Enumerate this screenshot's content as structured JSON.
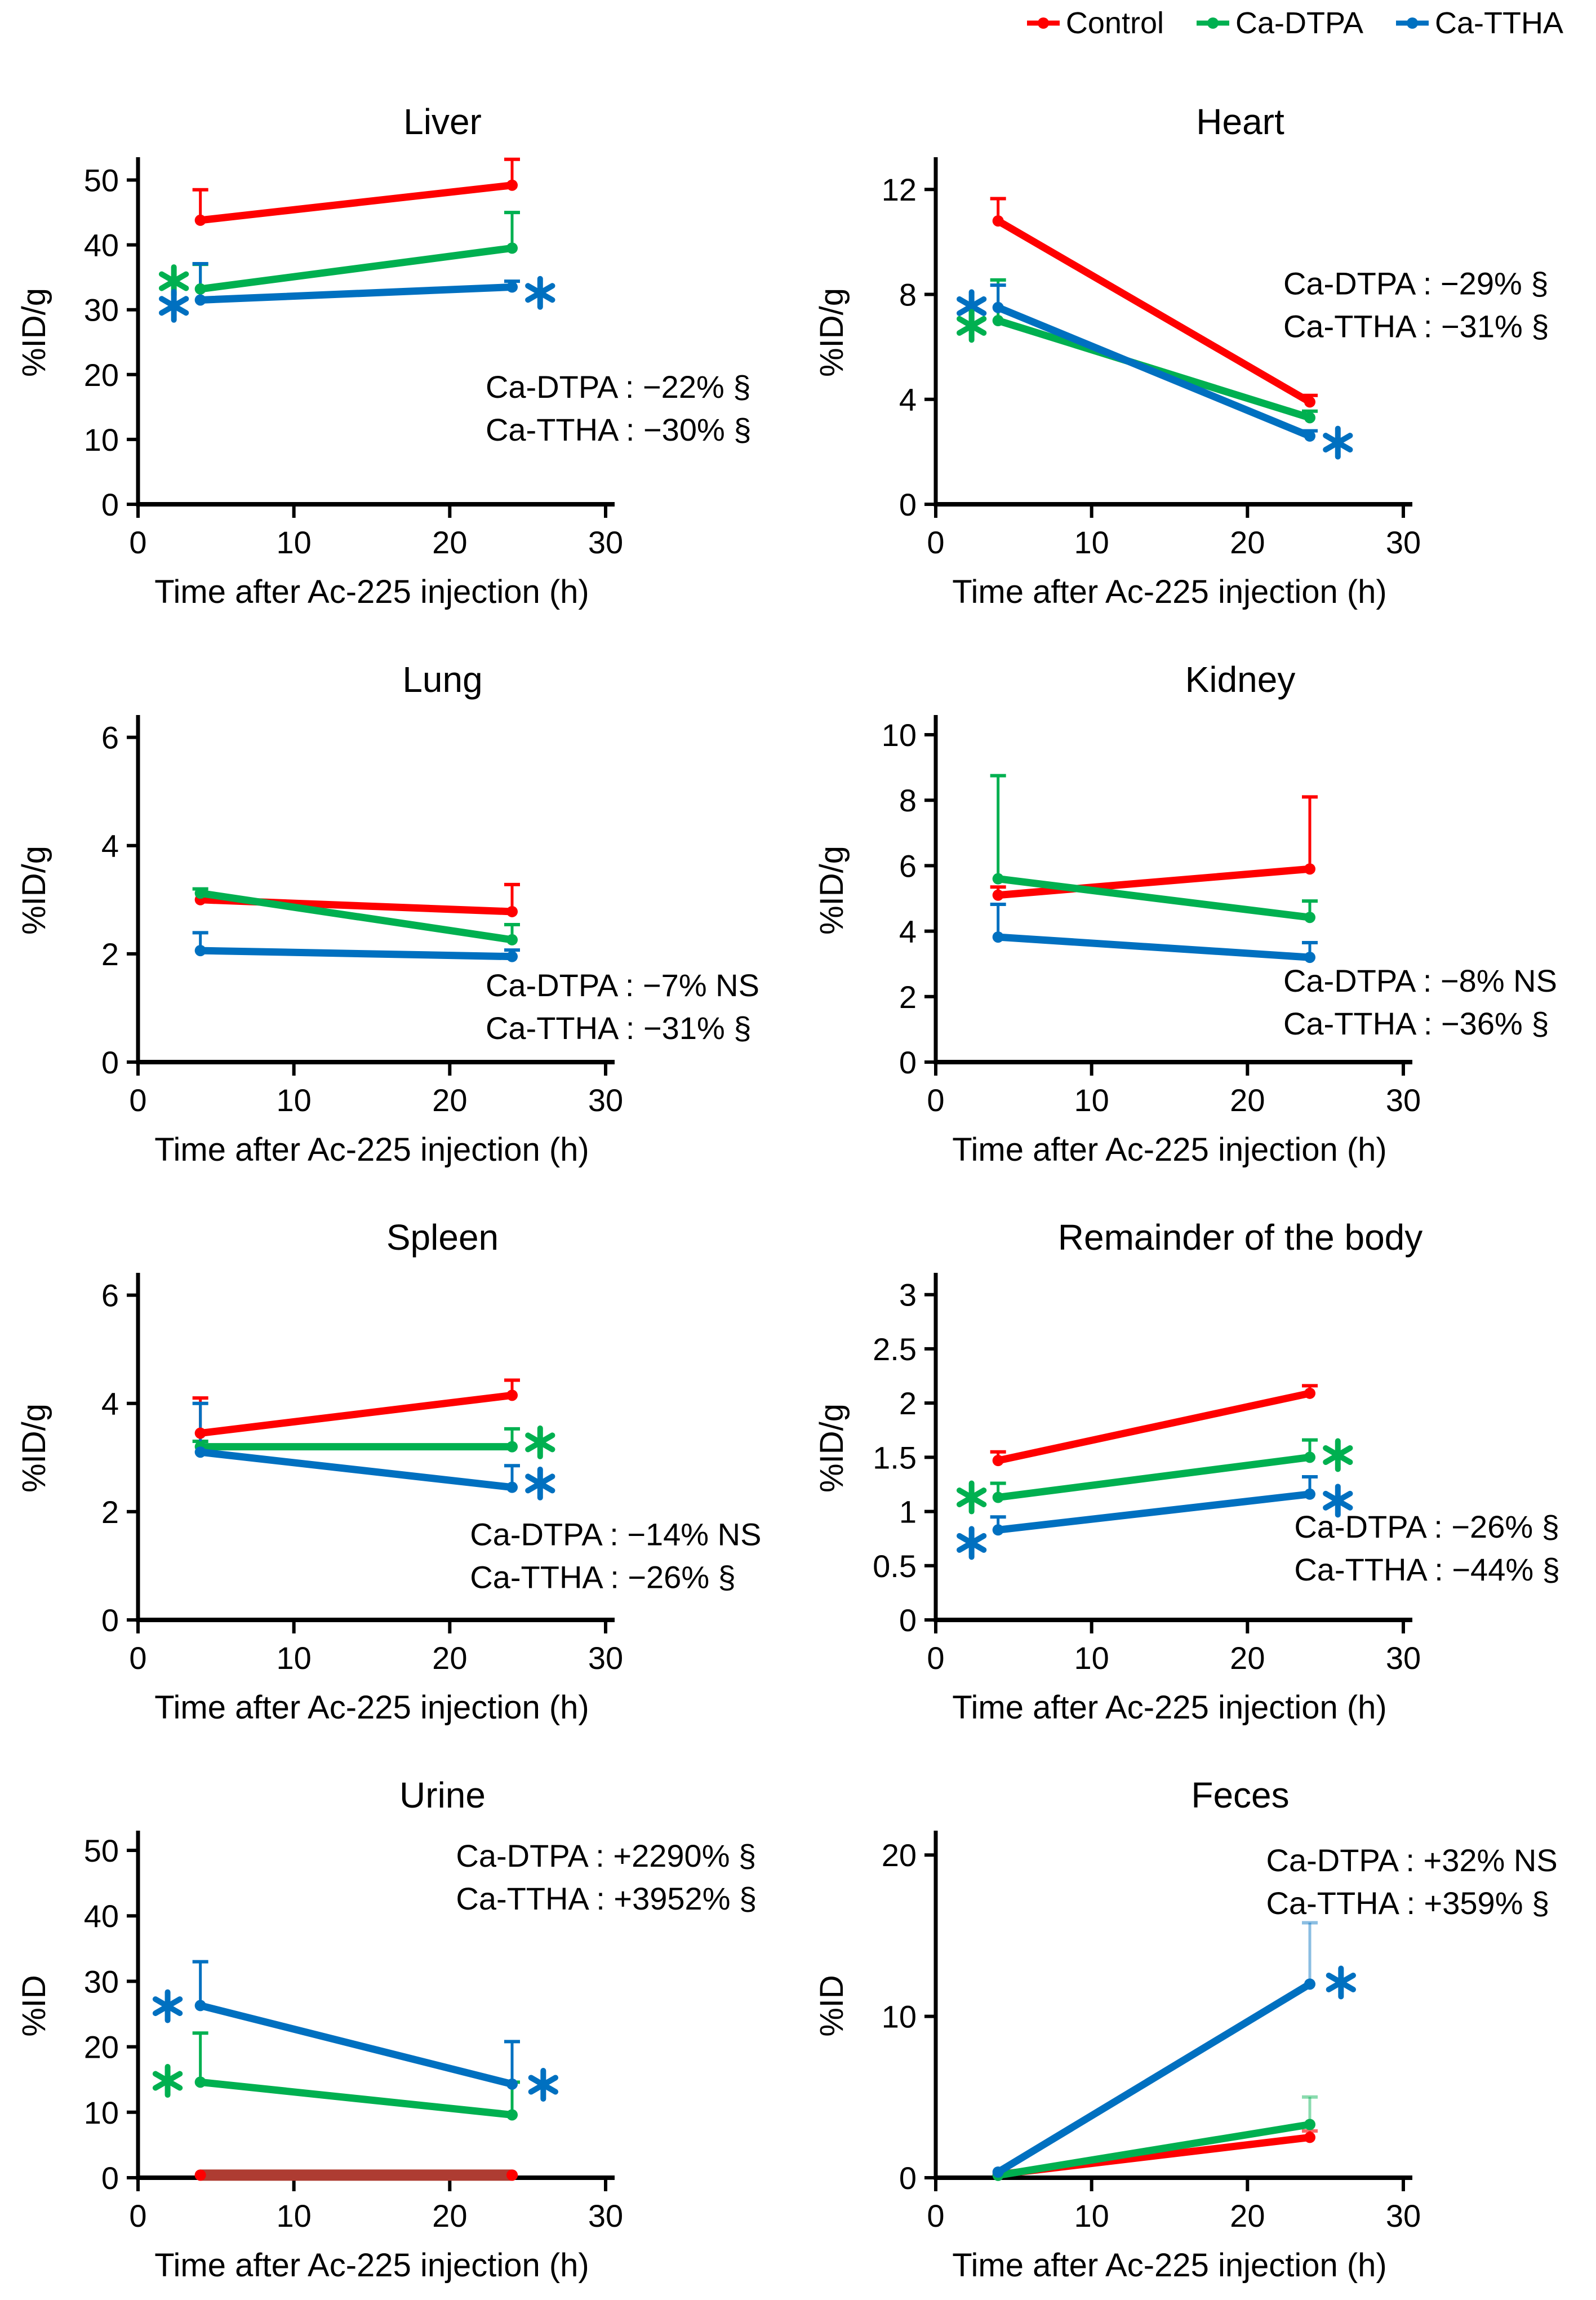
{
  "figure": {
    "x_axis_title": "Time after Ac-225 injection (h)",
    "colors": {
      "control": "#FF0000",
      "ca_dtpa": "#00B050",
      "ca_ttha": "#0070C0"
    },
    "legend": [
      {
        "label": "Control",
        "color": "#FF0000"
      },
      {
        "label": "Ca-DTPA",
        "color": "#00B050"
      },
      {
        "label": "Ca-TTHA",
        "color": "#0070C0"
      }
    ]
  },
  "chart_data": [
    {
      "type": "line",
      "title": "Liver",
      "ylabel": "%ID/g",
      "xlabel": "Time after Ac-225 injection (h)",
      "xlim": [
        0,
        30
      ],
      "xticks": [
        0,
        10,
        20,
        30
      ],
      "ylim": [
        0,
        53
      ],
      "yticks": [
        0,
        10,
        20,
        30,
        40,
        50
      ],
      "ytick_labels": [
        "0",
        "10",
        "20",
        "30",
        "40",
        "50"
      ],
      "x": [
        4,
        24
      ],
      "series": [
        {
          "name": "Control",
          "color": "#FF0000",
          "values": [
            43.8,
            49.2
          ],
          "errors": [
            4.7,
            4.0
          ]
        },
        {
          "name": "Ca-DTPA",
          "color": "#00B050",
          "values": [
            33.2,
            39.5
          ],
          "errors": [
            3.8,
            5.5
          ]
        },
        {
          "name": "Ca-TTHA",
          "color": "#0070C0",
          "values": [
            31.5,
            33.5
          ],
          "errors": [
            5.6,
            0.9
          ]
        }
      ],
      "asterisks": [
        {
          "x": 2.3,
          "y": 34.4,
          "color": "#00B050"
        },
        {
          "x": 2.3,
          "y": 30.6,
          "color": "#0070C0"
        },
        {
          "x": 25.8,
          "y": 32.6,
          "color": "#0070C0"
        }
      ],
      "annotation": {
        "x": 22.3,
        "y": 16.4,
        "lines": [
          "Ca-DTPA : −22% §",
          "Ca-TTHA : −30% §"
        ]
      }
    },
    {
      "type": "line",
      "title": "Heart",
      "ylabel": "%ID/g",
      "xlabel": "Time after Ac-225 injection (h)",
      "xlim": [
        0,
        30
      ],
      "xticks": [
        0,
        10,
        20,
        30
      ],
      "ylim": [
        0,
        13.1
      ],
      "yticks": [
        0,
        4,
        8,
        12
      ],
      "ytick_labels": [
        "0",
        "4",
        "8",
        "12"
      ],
      "x": [
        4,
        24
      ],
      "series": [
        {
          "name": "Control",
          "color": "#FF0000",
          "values": [
            10.8,
            3.9
          ],
          "errors": [
            0.85,
            0.25
          ]
        },
        {
          "name": "Ca-DTPA",
          "color": "#00B050",
          "values": [
            7.0,
            3.3
          ],
          "errors": [
            1.55,
            0.25
          ]
        },
        {
          "name": "Ca-TTHA",
          "color": "#0070C0",
          "values": [
            7.5,
            2.6
          ],
          "errors": [
            0.85,
            0.2
          ]
        }
      ],
      "asterisks": [
        {
          "x": 2.3,
          "y": 7.55,
          "color": "#0070C0"
        },
        {
          "x": 2.3,
          "y": 6.8,
          "color": "#00B050"
        },
        {
          "x": 25.8,
          "y": 2.35,
          "color": "#0070C0"
        }
      ],
      "annotation": {
        "x": 22.3,
        "y": 8.0,
        "lines": [
          "Ca-DTPA : −29% §",
          "Ca-TTHA : −31% §"
        ]
      }
    },
    {
      "type": "line",
      "title": "Lung",
      "ylabel": "%ID/g",
      "xlabel": "Time after Ac-225 injection (h)",
      "xlim": [
        0,
        30
      ],
      "xticks": [
        0,
        10,
        20,
        30
      ],
      "ylim": [
        0,
        6.35
      ],
      "yticks": [
        0,
        2,
        4,
        6
      ],
      "ytick_labels": [
        "0",
        "2",
        "4",
        "6"
      ],
      "x": [
        4,
        24
      ],
      "series": [
        {
          "name": "Control",
          "color": "#FF0000",
          "values": [
            3.0,
            2.78
          ],
          "errors": [
            0,
            0.5
          ]
        },
        {
          "name": "Ca-DTPA",
          "color": "#00B050",
          "values": [
            3.12,
            2.26
          ],
          "errors": [
            0.08,
            0.28
          ]
        },
        {
          "name": "Ca-TTHA",
          "color": "#0070C0",
          "values": [
            2.06,
            1.95
          ],
          "errors": [
            0.33,
            0.12
          ]
        }
      ],
      "asterisks": [],
      "annotation": {
        "x": 22.3,
        "y": 1.22,
        "lines": [
          "Ca-DTPA : −7% NS",
          "Ca-TTHA : −31% §"
        ]
      }
    },
    {
      "type": "line",
      "title": "Kidney",
      "ylabel": "%ID/g",
      "xlabel": "Time after Ac-225 injection (h)",
      "xlim": [
        0,
        30
      ],
      "xticks": [
        0,
        10,
        20,
        30
      ],
      "ylim": [
        0,
        10.5
      ],
      "yticks": [
        0,
        2,
        4,
        6,
        8,
        10
      ],
      "ytick_labels": [
        "0",
        "2",
        "4",
        "6",
        "8",
        "10"
      ],
      "x": [
        4,
        24
      ],
      "series": [
        {
          "name": "Control",
          "color": "#FF0000",
          "values": [
            5.1,
            5.9
          ],
          "errors": [
            0.25,
            2.2
          ]
        },
        {
          "name": "Ca-DTPA",
          "color": "#00B050",
          "values": [
            5.6,
            4.42
          ],
          "errors": [
            3.15,
            0.5
          ]
        },
        {
          "name": "Ca-TTHA",
          "color": "#0070C0",
          "values": [
            3.82,
            3.2
          ],
          "errors": [
            1.0,
            0.45
          ]
        }
      ],
      "asterisks": [],
      "annotation": {
        "x": 22.3,
        "y": 2.15,
        "lines": [
          "Ca-DTPA : −8% NS",
          "Ca-TTHA : −36% §"
        ]
      }
    },
    {
      "type": "line",
      "title": "Spleen",
      "ylabel": "%ID/g",
      "xlabel": "Time after Ac-225 injection (h)",
      "xlim": [
        0,
        30
      ],
      "xticks": [
        0,
        10,
        20,
        30
      ],
      "ylim": [
        0,
        6.35
      ],
      "yticks": [
        0,
        2,
        4,
        6
      ],
      "ytick_labels": [
        "0",
        "2",
        "4",
        "6"
      ],
      "x": [
        4,
        24
      ],
      "series": [
        {
          "name": "Control",
          "color": "#FF0000",
          "values": [
            3.45,
            4.15
          ],
          "errors": [
            0.65,
            0.28
          ]
        },
        {
          "name": "Ca-DTPA",
          "color": "#00B050",
          "values": [
            3.2,
            3.2
          ],
          "errors": [
            0.1,
            0.33
          ]
        },
        {
          "name": "Ca-TTHA",
          "color": "#0070C0",
          "values": [
            3.1,
            2.45
          ],
          "errors": [
            0.9,
            0.4
          ]
        }
      ],
      "asterisks": [
        {
          "x": 25.8,
          "y": 3.28,
          "color": "#00B050"
        },
        {
          "x": 25.8,
          "y": 2.52,
          "color": "#0070C0"
        }
      ],
      "annotation": {
        "x": 21.3,
        "y": 1.38,
        "lines": [
          "Ca-DTPA : −14% NS",
          "Ca-TTHA : −26% §"
        ]
      }
    },
    {
      "type": "line",
      "title": "Remainder of the body",
      "ylabel": "%ID/g",
      "xlabel": "Time after Ac-225 injection (h)",
      "xlim": [
        0,
        30
      ],
      "xticks": [
        0,
        10,
        20,
        30
      ],
      "ylim": [
        0,
        3.17
      ],
      "yticks": [
        0,
        0.5,
        1,
        1.5,
        2,
        2.5,
        3
      ],
      "ytick_labels": [
        "0",
        "0.5",
        "1",
        "1.5",
        "2",
        "2.5",
        "3"
      ],
      "x": [
        4,
        24
      ],
      "series": [
        {
          "name": "Control",
          "color": "#FF0000",
          "values": [
            1.47,
            2.09
          ],
          "errors": [
            0.08,
            0.07
          ]
        },
        {
          "name": "Ca-DTPA",
          "color": "#00B050",
          "values": [
            1.13,
            1.5
          ],
          "errors": [
            0.13,
            0.16
          ]
        },
        {
          "name": "Ca-TTHA",
          "color": "#0070C0",
          "values": [
            0.83,
            1.16
          ],
          "errors": [
            0.12,
            0.16
          ]
        }
      ],
      "asterisks": [
        {
          "x": 2.3,
          "y": 1.13,
          "color": "#00B050"
        },
        {
          "x": 2.3,
          "y": 0.71,
          "color": "#0070C0"
        },
        {
          "x": 25.8,
          "y": 1.52,
          "color": "#00B050"
        },
        {
          "x": 25.8,
          "y": 1.1,
          "color": "#0070C0"
        }
      ],
      "annotation": {
        "x": 23.0,
        "y": 0.76,
        "lines": [
          "Ca-DTPA : −26% §",
          "Ca-TTHA : −44% §"
        ]
      }
    },
    {
      "type": "line",
      "title": "Urine",
      "ylabel": "%ID",
      "xlabel": "Time after Ac-225 injection (h)",
      "xlim": [
        0,
        30
      ],
      "xticks": [
        0,
        10,
        20,
        30
      ],
      "ylim": [
        0,
        52.5
      ],
      "yticks": [
        0,
        10,
        20,
        30,
        40,
        50
      ],
      "ytick_labels": [
        "0",
        "10",
        "20",
        "30",
        "40",
        "50"
      ],
      "x": [
        4,
        24
      ],
      "series": [
        {
          "name": "Control",
          "color": "#FF0000",
          "line_color": "#AE3C32",
          "line_width": 20,
          "values": [
            0.4,
            0.4
          ],
          "errors": [
            0,
            0
          ]
        },
        {
          "name": "Ca-DTPA",
          "color": "#00B050",
          "values": [
            14.6,
            9.6
          ],
          "errors": [
            7.5,
            5.0
          ]
        },
        {
          "name": "Ca-TTHA",
          "color": "#0070C0",
          "values": [
            26.3,
            14.3
          ],
          "errors": [
            6.7,
            6.5
          ]
        }
      ],
      "asterisks": [
        {
          "x": 1.9,
          "y": 26.2,
          "color": "#0070C0"
        },
        {
          "x": 1.9,
          "y": 14.8,
          "color": "#00B050"
        },
        {
          "x": 26.0,
          "y": 14.2,
          "color": "#0070C0"
        }
      ],
      "annotation": {
        "x": 20.4,
        "y": 47.5,
        "lines": [
          "Ca-DTPA : +2290% §",
          "Ca-TTHA : +3952% §"
        ]
      }
    },
    {
      "type": "line",
      "title": "Feces",
      "ylabel": "%ID",
      "xlabel": "Time after Ac-225 injection (h)",
      "xlim": [
        0,
        30
      ],
      "xticks": [
        0,
        10,
        20,
        30
      ],
      "ylim": [
        0,
        21.3
      ],
      "yticks": [
        0,
        10,
        20
      ],
      "ytick_labels": [
        "0",
        "10",
        "20"
      ],
      "x": [
        4,
        24
      ],
      "series": [
        {
          "name": "Control",
          "color": "#FF0000",
          "values": [
            0.2,
            2.5
          ],
          "errors": [
            0,
            0.4
          ],
          "error_opacity": 0.6
        },
        {
          "name": "Ca-DTPA",
          "color": "#00B050",
          "values": [
            0.15,
            3.3
          ],
          "errors": [
            0,
            1.7
          ],
          "error_opacity": 0.45
        },
        {
          "name": "Ca-TTHA",
          "color": "#0070C0",
          "values": [
            0.35,
            12.0
          ],
          "errors": [
            0,
            3.8
          ],
          "error_opacity": 0.45
        }
      ],
      "asterisks": [
        {
          "x": 26.0,
          "y": 12.1,
          "color": "#0070C0"
        }
      ],
      "annotation": {
        "x": 21.2,
        "y": 19.0,
        "lines": [
          "Ca-DTPA : +32% NS",
          "Ca-TTHA : +359% §"
        ]
      }
    }
  ]
}
